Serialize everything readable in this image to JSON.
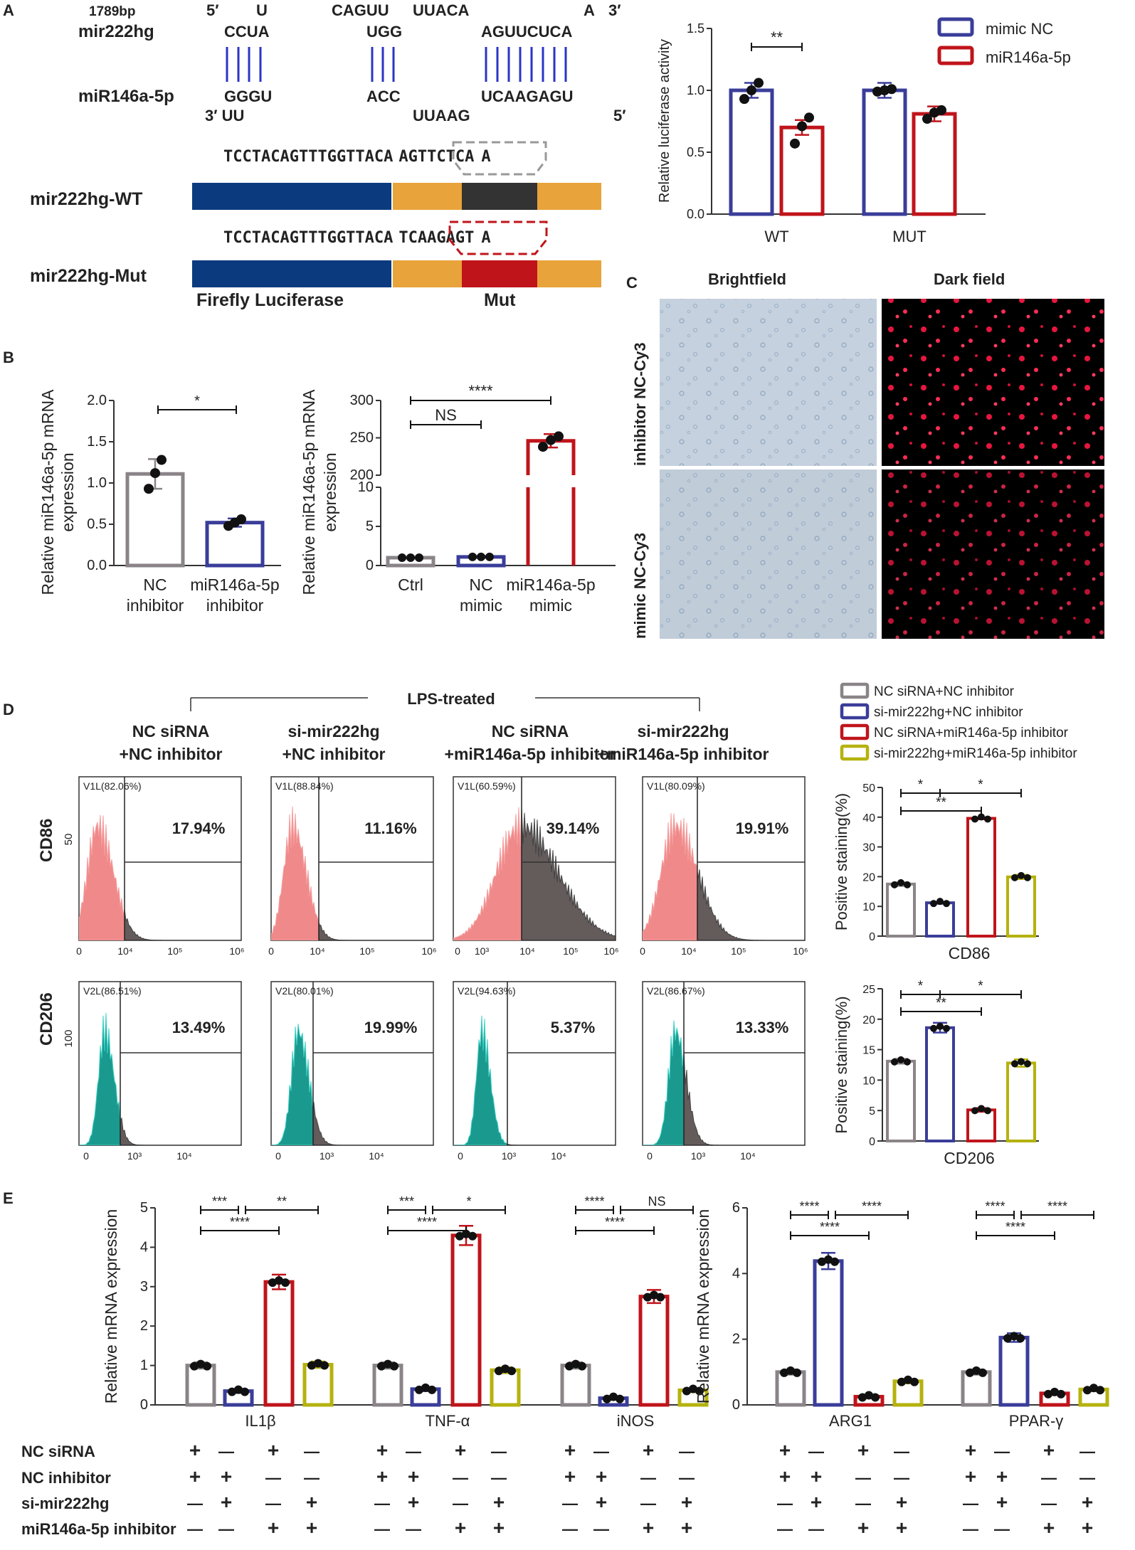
{
  "colors": {
    "nc_grey": "#8a8488",
    "si_blue": "#3a3d99",
    "inh_red": "#c0141b",
    "combo_olive": "#b5b20e",
    "wt_box": "#999999",
    "mut_box": "#c0141b",
    "lucif_blue": "#0b3a7e",
    "orange": "#e8a33a",
    "dark": "#333333",
    "cd86_fill": "#f08a8a",
    "cd206_fill": "#1a9a8f"
  },
  "panel_labels": {
    "a": "A",
    "b": "B",
    "c": "C",
    "d": "D",
    "e": "E"
  },
  "panel_a": {
    "length": "1789bp",
    "mir222hg_name": "mir222hg",
    "mir146_name": "miR146a-5p",
    "top_5prime": "5′",
    "top_3prime": "3′",
    "top_unpaired": [
      "U",
      "CAGUU",
      "UUACA",
      "A"
    ],
    "top_paired": [
      "CCUA",
      "UGG",
      "AGUUCUCA"
    ],
    "bot_paired": [
      "GGGU",
      "ACC",
      "UCAAGAGU"
    ],
    "bot_3prime_uu": "3′ UU",
    "bot_unpaired": "UUAAG",
    "bot_5prime": "5′",
    "wt_seq": "TCCTACAGTTTGGTTACA",
    "wt_site": "AGTTCTCA",
    "wt_tail": "A",
    "mut_seq": "TCCTACAGTTTGGTTACA",
    "mut_site": "TCAAGAGT",
    "mut_tail": "A",
    "wt_label": "mir222hg-WT",
    "mut_label": "mir222hg-Mut",
    "luc_label": "Firefly Luciferase",
    "mut_box_label": "Mut"
  },
  "chart_data": [
    {
      "id": "luciferase",
      "type": "bar",
      "title": "",
      "ylabel": "Relative luciferase activity",
      "xlabel": "",
      "categories": [
        "WT",
        "MUT"
      ],
      "ylim": [
        0,
        1.5
      ],
      "yticks": [
        "0.0",
        "0.5",
        "1.0",
        "1.5"
      ],
      "series": [
        {
          "name": "mimic NC",
          "values": [
            1.0,
            1.0
          ],
          "points": [
            [
              0.93,
              1.0,
              1.06
            ],
            [
              0.99,
              1.0,
              1.01
            ]
          ]
        },
        {
          "name": "miR146a-5p",
          "values": [
            0.7,
            0.81
          ],
          "points": [
            [
              0.57,
              0.71,
              0.78
            ],
            [
              0.77,
              0.82,
              0.84
            ]
          ]
        }
      ],
      "significance": [
        {
          "label": "**",
          "between": "WT mimic NC vs WT miR146a-5p"
        }
      ]
    },
    {
      "id": "inhibitor_expr",
      "type": "bar",
      "ylabel": "Relative miR146a-5p mRNA expression",
      "categories": [
        "NC inhibitor",
        "miR146a-5p inhibitor"
      ],
      "ylim": [
        0,
        2.0
      ],
      "yticks": [
        "0.0",
        "0.5",
        "1.0",
        "1.5",
        "2.0"
      ],
      "values": [
        1.11,
        0.52
      ],
      "points": [
        [
          0.93,
          1.12,
          1.28
        ],
        [
          0.48,
          0.52,
          0.56
        ]
      ],
      "significance": [
        {
          "label": "*",
          "between": "NC inhibitor vs miR146a-5p inhibitor"
        }
      ]
    },
    {
      "id": "mimic_expr",
      "type": "bar",
      "ylabel": "Relative miR146a-5p mRNA expression",
      "categories": [
        "Ctrl",
        "NC mimic",
        "miR146a-5p mimic"
      ],
      "ylim_lower": [
        0,
        10
      ],
      "ylim_upper": [
        200,
        300
      ],
      "yticks": [
        "0",
        "5",
        "10",
        "200",
        "250",
        "300"
      ],
      "values": [
        1.0,
        1.1,
        246
      ],
      "points": [
        [
          1.0,
          1.0,
          1.0
        ],
        [
          1.1,
          1.1,
          1.1
        ],
        [
          238,
          247,
          252
        ]
      ],
      "significance": [
        {
          "label": "NS",
          "between": "Ctrl vs NC mimic"
        },
        {
          "label": "****",
          "between": "Ctrl vs miR146a-5p mimic"
        }
      ]
    },
    {
      "id": "cd86_bar",
      "type": "bar",
      "ylabel": "Positive staining(%)",
      "xlabel": "CD86",
      "categories": [
        "NC siRNA+NC inhibitor",
        "si-mir222hg+NC inhibitor",
        "NC siRNA+miR146a-5p inhibitor",
        "si-mir222hg+miR146a-5p inhibitor"
      ],
      "ylim": [
        0,
        50
      ],
      "yticks": [
        "0",
        "10",
        "20",
        "30",
        "40",
        "50"
      ],
      "values": [
        17.5,
        11.2,
        39.6,
        19.9
      ],
      "significance": [
        {
          "label": "*",
          "between": "1 vs 2"
        },
        {
          "label": "*",
          "between": "2 vs 4"
        },
        {
          "label": "**",
          "between": "1 vs 3"
        }
      ]
    },
    {
      "id": "cd206_bar",
      "type": "bar",
      "ylabel": "Positive staining(%)",
      "xlabel": "CD206",
      "categories": [
        "NC siRNA+NC inhibitor",
        "si-mir222hg+NC inhibitor",
        "NC siRNA+miR146a-5p inhibitor",
        "si-mir222hg+miR146a-5p inhibitor"
      ],
      "ylim": [
        0,
        25
      ],
      "yticks": [
        "0",
        "5",
        "10",
        "15",
        "20",
        "25"
      ],
      "values": [
        13.1,
        18.6,
        5.1,
        12.8
      ],
      "significance": [
        {
          "label": "*",
          "between": "1 vs 2"
        },
        {
          "label": "*",
          "between": "2 vs 4"
        },
        {
          "label": "**",
          "between": "1 vs 3"
        }
      ]
    },
    {
      "id": "m1_markers",
      "type": "bar",
      "ylabel": "Relative mRNA expression",
      "categories": [
        "IL1β",
        "TNF-α",
        "iNOS"
      ],
      "ylim": [
        0,
        5
      ],
      "yticks": [
        "0",
        "1",
        "2",
        "3",
        "4",
        "5"
      ],
      "series": [
        {
          "name": "NC siRNA+NC inhibitor",
          "values": [
            1.0,
            1.0,
            1.0
          ]
        },
        {
          "name": "si-mir222hg+NC inhibitor",
          "values": [
            0.35,
            0.4,
            0.17
          ]
        },
        {
          "name": "NC siRNA+miR146a-5p inhibitor",
          "values": [
            3.12,
            4.3,
            2.75
          ]
        },
        {
          "name": "si-mir222hg+miR146a-5p inhibitor",
          "values": [
            1.02,
            0.88,
            0.37
          ]
        }
      ],
      "significance": [
        [
          "***",
          "**",
          "****"
        ],
        [
          "***",
          "*",
          "****"
        ],
        [
          "****",
          "NS",
          "****"
        ]
      ]
    },
    {
      "id": "m2_markers",
      "type": "bar",
      "ylabel": "Relative mRNA expression",
      "categories": [
        "ARG1",
        "PPAR-γ"
      ],
      "ylim": [
        0,
        6
      ],
      "yticks": [
        "0",
        "2",
        "4",
        "6"
      ],
      "series": [
        {
          "name": "NC siRNA+NC inhibitor",
          "values": [
            1.0,
            1.0
          ]
        },
        {
          "name": "si-mir222hg+NC inhibitor",
          "values": [
            4.38,
            2.05
          ]
        },
        {
          "name": "NC siRNA+miR146a-5p inhibitor",
          "values": [
            0.25,
            0.35
          ]
        },
        {
          "name": "si-mir222hg+miR146a-5p inhibitor",
          "values": [
            0.72,
            0.47
          ]
        }
      ],
      "significance": [
        [
          "****",
          "****",
          "****"
        ],
        [
          "****",
          "****",
          "****"
        ]
      ]
    }
  ],
  "panel_c": {
    "col1": "Brightfield",
    "col2": "Dark field",
    "row1": "inhibitor NC-Cy3",
    "row2": "mimic NC-Cy3"
  },
  "panel_d": {
    "lps": "LPS-treated",
    "groups": [
      [
        "NC siRNA",
        "+NC inhibitor"
      ],
      [
        "si-mir222hg",
        "+NC inhibitor"
      ],
      [
        "NC siRNA",
        "+miR146a-5p inhibitor"
      ],
      [
        "si-mir222hg",
        "+miR146a-5p inhibitor"
      ]
    ],
    "legend": [
      "NC siRNA+NC inhibitor",
      "si-mir222hg+NC inhibitor",
      "NC siRNA+miR146a-5p inhibitor",
      "si-mir222hg+miR146a-5p inhibitor"
    ],
    "row_labels": [
      "CD86",
      "CD206"
    ],
    "cd86_gates": [
      "V1L(82.06%)",
      "V1L(88.84%)",
      "V1L(60.59%)",
      "V1L(80.09%)"
    ],
    "cd86_pct": [
      "17.94%",
      "11.16%",
      "39.14%",
      "19.91%"
    ],
    "cd206_gates": [
      "V2L(86.51%)",
      "V2L(80.01%)",
      "V2L(94.63%)",
      "V2L(86.67%)"
    ],
    "cd206_pct": [
      "13.49%",
      "19.99%",
      "5.37%",
      "13.33%"
    ],
    "cd86_ytick": "50",
    "cd206_ytick": "100",
    "x_cd86": [
      "0",
      "10⁴",
      "10⁵",
      "10⁶"
    ],
    "x_cd86_alt": [
      "0",
      "10³",
      "10⁴",
      "10⁵",
      "10⁶"
    ],
    "x_cd206": [
      "0",
      "10³",
      "10⁴"
    ]
  },
  "panel_e": {
    "rows": [
      "NC siRNA",
      "NC inhibitor",
      "si-mir222hg",
      "miR146a-5p inhibitor"
    ],
    "signs": [
      [
        "+",
        "—",
        "+",
        "—"
      ],
      [
        "+",
        "+",
        "—",
        "—"
      ],
      [
        "—",
        "+",
        "—",
        "+"
      ],
      [
        "—",
        "—",
        "+",
        "+"
      ]
    ],
    "plus": "+",
    "minus": "—"
  }
}
